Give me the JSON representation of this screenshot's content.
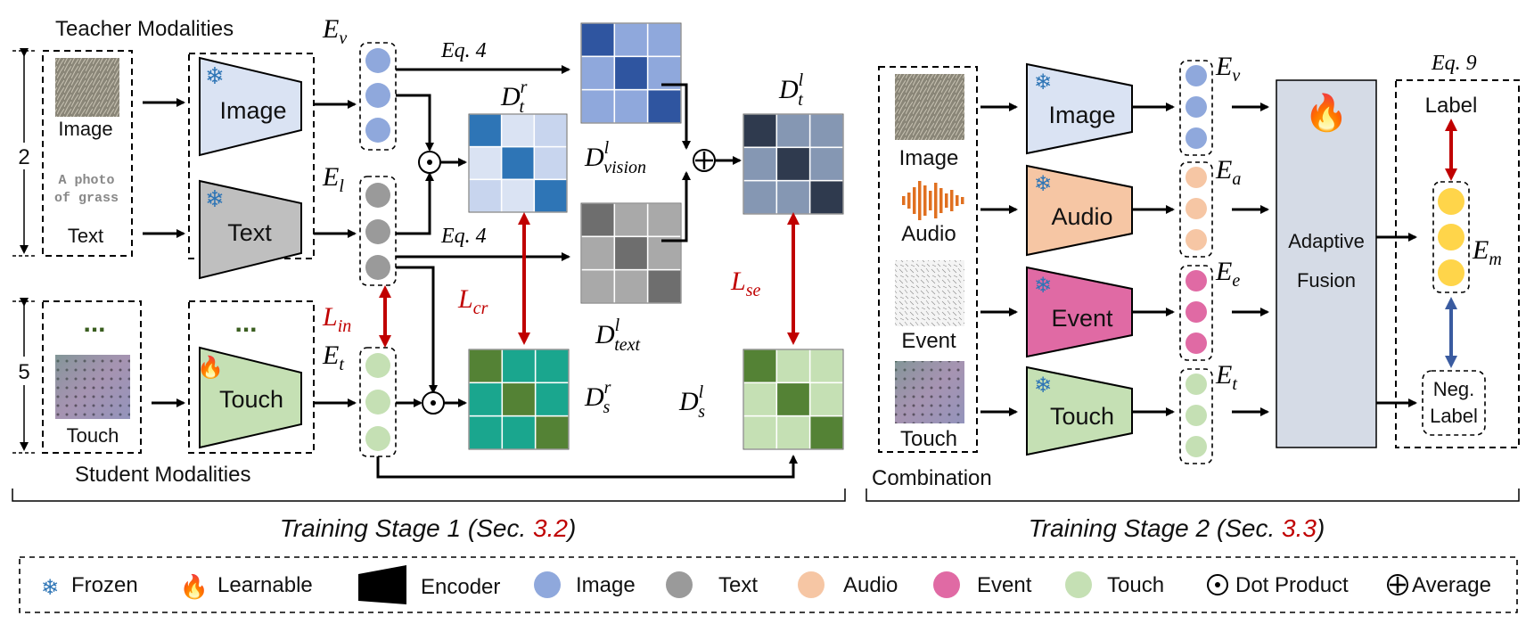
{
  "stage1": {
    "teacher_title": "Teacher Modalities",
    "student_title": "Student Modalities",
    "bracket_label": "Training Stage 1 (Sec. ",
    "bracket_ref": "3.2",
    "bracket_close": ")",
    "count_teacher": "2",
    "count_student": "5",
    "ellipsis": "...",
    "image_caption": "Image",
    "text_sample_line1": "A photo",
    "text_sample_line2": "of grass",
    "text_caption": "Text",
    "touch_caption": "Touch",
    "enc_image": "Image",
    "enc_text": "Text",
    "enc_touch": "Touch",
    "emb_v": "E",
    "emb_v_sub": "v",
    "emb_l": "E",
    "emb_l_sub": "l",
    "emb_t": "E",
    "emb_t_sub": "t",
    "eq4_top": "Eq. 4",
    "eq4_mid": "Eq. 4",
    "d_tr": "D",
    "d_tr_sub": "t",
    "d_tr_sup": "r",
    "d_vision": "D",
    "d_vision_sub": "vision",
    "d_vision_sup": "l",
    "d_text": "D",
    "d_text_sub": "text",
    "d_text_sup": "l",
    "d_tl": "D",
    "d_tl_sub": "t",
    "d_tl_sup": "l",
    "d_sr": "D",
    "d_sr_sub": "s",
    "d_sr_sup": "r",
    "d_sl": "D",
    "d_sl_sub": "s",
    "d_sl_sup": "l",
    "loss_in": "L",
    "loss_in_sub": "in",
    "loss_cr": "L",
    "loss_cr_sub": "cr",
    "loss_se": "L",
    "loss_se_sub": "se"
  },
  "stage2": {
    "combination": "Combination",
    "bracket_label": "Training Stage 2 (Sec. ",
    "bracket_ref": "3.3",
    "bracket_close": ")",
    "cap_image": "Image",
    "cap_audio": "Audio",
    "cap_event": "Event",
    "cap_touch": "Touch",
    "enc_image": "Image",
    "enc_audio": "Audio",
    "enc_event": "Event",
    "enc_touch": "Touch",
    "emb_v": "E",
    "emb_v_sub": "v",
    "emb_a": "E",
    "emb_a_sub": "a",
    "emb_e": "E",
    "emb_e_sub": "e",
    "emb_t": "E",
    "emb_t_sub": "t",
    "fusion_line1": "Adaptive",
    "fusion_line2": "Fusion",
    "eq9": "Eq. 9",
    "label": "Label",
    "emb_m": "E",
    "emb_m_sub": "m",
    "neg_line1": "Neg.",
    "neg_line2": "Label"
  },
  "legend": {
    "frozen": "Frozen",
    "learnable": "Learnable",
    "encoder": "Encoder",
    "image": "Image",
    "text": "Text",
    "audio": "Audio",
    "event": "Event",
    "touch": "Touch",
    "dot_product": "Dot Product",
    "average": "Average"
  },
  "colors": {
    "image": "#8fa8dc",
    "text": "#9a9a9a",
    "audio": "#f6c6a4",
    "event": "#e06aa4",
    "touch": "#c5e0b4",
    "highlight_red": "#c00000",
    "image_caption": "#2e5597",
    "audio_caption": "#e07020",
    "event_caption": "#e070b0",
    "touch_caption": "#3a5e1f",
    "neg_arrow": "#3a5ba0",
    "fusion_box": "#d5dbe6"
  },
  "icons": [
    "snowflake-icon",
    "flame-icon",
    "dot-product-icon",
    "average-icon",
    "waveform-icon"
  ]
}
